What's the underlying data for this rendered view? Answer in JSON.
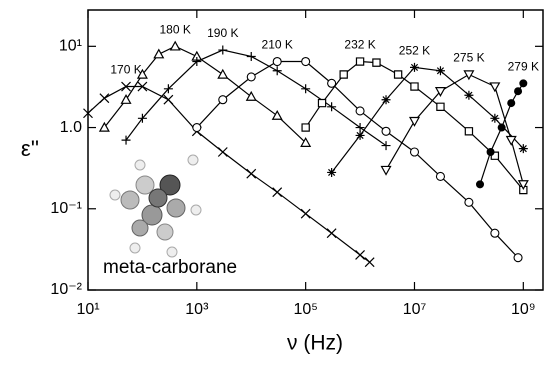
{
  "chart_data": {
    "type": "scatter",
    "x_label": "ν (Hz)",
    "y_label": "ε''",
    "annotation": "meta-carborane",
    "log_x": true,
    "log_y": true,
    "xlim": [
      10,
      2300000000
    ],
    "ylim": [
      0.01,
      28
    ],
    "xticks": [
      {
        "value": 10,
        "label": "10¹"
      },
      {
        "value": 1000,
        "label": "10³"
      },
      {
        "value": 100000,
        "label": "10⁵"
      },
      {
        "value": 10000000,
        "label": "10⁷"
      },
      {
        "value": 1000000000,
        "label": "10⁹"
      }
    ],
    "yticks": [
      {
        "value": 0.01,
        "label": "10⁻²"
      },
      {
        "value": 0.1,
        "label": "10⁻¹"
      },
      {
        "value": 1,
        "label": "1.0"
      },
      {
        "value": 10,
        "label": "10¹"
      }
    ],
    "series": [
      {
        "name": "170 K",
        "color": "#000000",
        "marker": "x",
        "x": [
          10,
          20,
          50,
          100,
          300,
          1000,
          3000,
          10000,
          30000,
          100000,
          300000,
          1000000,
          1500000
        ],
        "values": [
          1.5,
          2.3,
          3.2,
          3.2,
          2.2,
          0.9,
          0.5,
          0.27,
          0.16,
          0.087,
          0.05,
          0.027,
          0.022
        ]
      },
      {
        "name": "180 K",
        "color": "#000000",
        "marker": "triangle-up",
        "x": [
          20,
          50,
          100,
          200,
          400,
          1000,
          3000,
          10000,
          30000,
          100000
        ],
        "values": [
          1.0,
          2.2,
          4.5,
          8,
          10,
          7.5,
          4.5,
          2.4,
          1.4,
          0.65
        ]
      },
      {
        "name": "190 K",
        "color": "#000000",
        "marker": "plus",
        "x": [
          50,
          100,
          300,
          1000,
          3000,
          10000,
          30000,
          100000,
          300000,
          1000000,
          3000000
        ],
        "values": [
          0.7,
          1.3,
          3,
          6.5,
          9,
          7.5,
          5,
          3,
          1.8,
          1.0,
          0.6
        ]
      },
      {
        "name": "210 K",
        "color": "#000000",
        "marker": "circle",
        "x": [
          1000,
          3000,
          10000,
          30000,
          100000,
          300000,
          1000000,
          3000000,
          10000000,
          30000000,
          100000000,
          300000000,
          800000000
        ],
        "values": [
          1.0,
          2.2,
          4.2,
          6.5,
          6.5,
          3.5,
          1.6,
          0.9,
          0.5,
          0.25,
          0.12,
          0.05,
          0.025
        ]
      },
      {
        "name": "232 K",
        "color": "#000000",
        "marker": "square",
        "x": [
          100000,
          200000,
          500000,
          1000000,
          2000000,
          5000000,
          10000000,
          30000000,
          100000000,
          300000000,
          1000000000
        ],
        "values": [
          1.0,
          2.0,
          4.5,
          6.5,
          6.3,
          4.5,
          3.2,
          1.8,
          0.9,
          0.45,
          0.17
        ]
      },
      {
        "name": "252 K",
        "color": "#000000",
        "marker": "star",
        "x": [
          300000,
          1000000,
          3000000,
          10000000,
          30000000,
          100000000,
          300000000,
          1000000000
        ],
        "values": [
          0.28,
          0.8,
          2.2,
          5.5,
          5,
          2.5,
          1.3,
          0.55
        ]
      },
      {
        "name": "275 K",
        "color": "#000000",
        "marker": "triangle-down",
        "x": [
          3000000,
          10000000,
          30000000,
          100000000,
          300000000,
          600000000,
          1000000000
        ],
        "values": [
          0.3,
          1.2,
          2.8,
          4.5,
          3.2,
          0.7,
          0.2
        ]
      },
      {
        "name": "279 K",
        "color": "#000000",
        "marker": "dot",
        "x": [
          160000000,
          250000000,
          400000000,
          600000000,
          800000000,
          1000000000
        ],
        "values": [
          0.2,
          0.5,
          1.0,
          2.0,
          2.8,
          3.5
        ]
      }
    ]
  }
}
